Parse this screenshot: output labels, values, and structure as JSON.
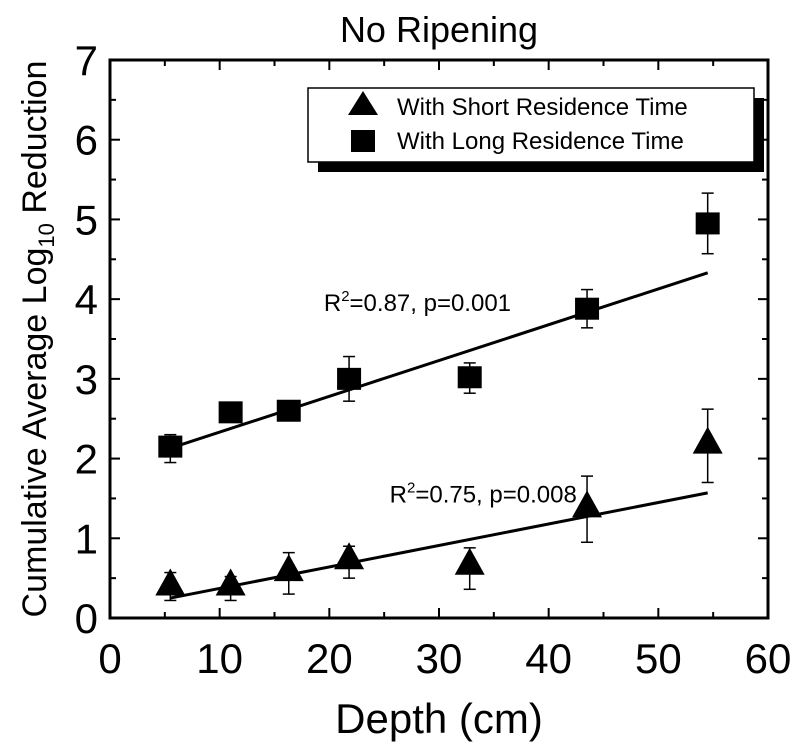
{
  "chart_data": {
    "type": "scatter",
    "title": "No Ripening",
    "xlabel": "Depth (cm)",
    "ylabel_main": "Cumulative Average Log",
    "ylabel_sub": "10",
    "ylabel_tail": " Reduction",
    "xlim": [
      0,
      60
    ],
    "ylim": [
      0,
      7
    ],
    "xticks": [
      0,
      10,
      20,
      30,
      40,
      50,
      60
    ],
    "yticks": [
      0,
      1,
      2,
      3,
      4,
      5,
      6,
      7
    ],
    "grid": false,
    "legend_position": "top-right",
    "series": [
      {
        "name": "With Short Residence Time",
        "marker": "triangle",
        "color": "#000000",
        "points": [
          {
            "x": 5.5,
            "y": 0.42,
            "err_low": 0.2,
            "err_high": 0.15
          },
          {
            "x": 11.0,
            "y": 0.42,
            "err_low": 0.2,
            "err_high": 0.1
          },
          {
            "x": 16.3,
            "y": 0.6,
            "err_low": 0.3,
            "err_high": 0.22
          },
          {
            "x": 21.8,
            "y": 0.75,
            "err_low": 0.25,
            "err_high": 0.15
          },
          {
            "x": 32.8,
            "y": 0.68,
            "err_low": 0.32,
            "err_high": 0.2
          },
          {
            "x": 43.5,
            "y": 1.4,
            "err_low": 0.45,
            "err_high": 0.38
          },
          {
            "x": 54.5,
            "y": 2.2,
            "err_low": 0.5,
            "err_high": 0.42
          }
        ],
        "fit": {
          "x1": 5.5,
          "y1": 0.25,
          "x2": 54.5,
          "y2": 1.57
        },
        "annotation": {
          "prefix": "R",
          "sup": "2",
          "rest": "=0.75, p=0.008",
          "x": 25.5,
          "y": 1.45
        }
      },
      {
        "name": "With Long Residence Time",
        "marker": "square",
        "color": "#000000",
        "points": [
          {
            "x": 5.5,
            "y": 2.15,
            "err_low": 0.2,
            "err_high": 0.15
          },
          {
            "x": 11.0,
            "y": 2.58,
            "err_low": 0.1,
            "err_high": 0.1
          },
          {
            "x": 16.3,
            "y": 2.6,
            "err_low": 0.1,
            "err_high": 0.1
          },
          {
            "x": 21.8,
            "y": 3.0,
            "err_low": 0.28,
            "err_high": 0.28
          },
          {
            "x": 32.8,
            "y": 3.02,
            "err_low": 0.2,
            "err_high": 0.18
          },
          {
            "x": 43.5,
            "y": 3.88,
            "err_low": 0.24,
            "err_high": 0.24
          },
          {
            "x": 54.5,
            "y": 4.95,
            "err_low": 0.38,
            "err_high": 0.38
          }
        ],
        "fit": {
          "x1": 5.5,
          "y1": 2.13,
          "x2": 54.5,
          "y2": 4.33
        },
        "annotation": {
          "prefix": "R",
          "sup": "2",
          "rest": "=0.87, p=0.001",
          "x": 19.5,
          "y": 3.85
        }
      }
    ]
  }
}
